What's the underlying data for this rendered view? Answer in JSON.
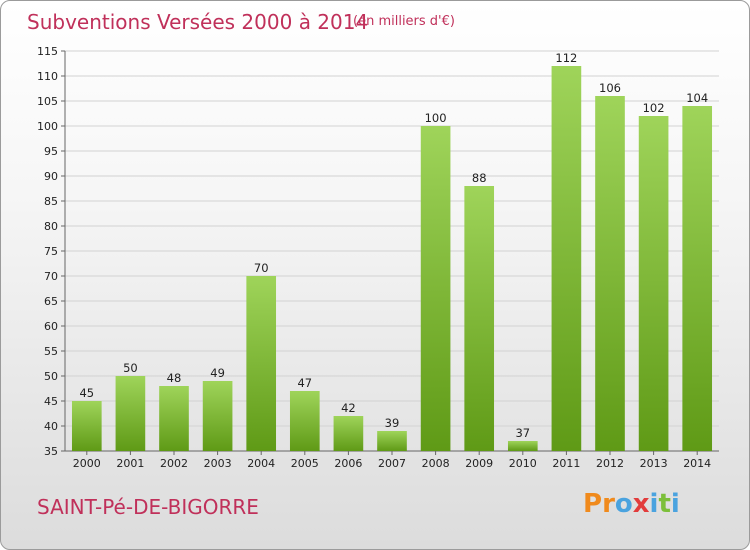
{
  "header": {
    "title": "Subventions Versées 2000 à 2014",
    "subtitle": "(en milliers d'€)"
  },
  "footer": {
    "place": "SAINT-Pé-DE-BIGORRE",
    "logo_text": "Proxiti"
  },
  "colors": {
    "title": "#c0305a",
    "bar_light": "#9fd45a",
    "bar_dark": "#5f9a16",
    "logo": [
      "#f08a1c",
      "#f08a1c",
      "#4aa3df",
      "#e23c3c",
      "#4aa3df",
      "#7cbf3a",
      "#4aa3df"
    ]
  },
  "chart_data": {
    "type": "bar",
    "categories": [
      "2000",
      "2001",
      "2002",
      "2003",
      "2004",
      "2005",
      "2006",
      "2007",
      "2008",
      "2009",
      "2010",
      "2011",
      "2012",
      "2013",
      "2014"
    ],
    "values": [
      45,
      50,
      48,
      49,
      70,
      47,
      42,
      39,
      100,
      88,
      37,
      112,
      106,
      102,
      104
    ],
    "title": "Subventions Versées 2000 à 2014",
    "subtitle": "(en milliers d'€)",
    "ylim": [
      35,
      115
    ],
    "yticks": [
      35,
      40,
      45,
      50,
      55,
      60,
      65,
      70,
      75,
      80,
      85,
      90,
      95,
      100,
      105,
      110,
      115
    ],
    "grid": true,
    "data_labels": true
  }
}
